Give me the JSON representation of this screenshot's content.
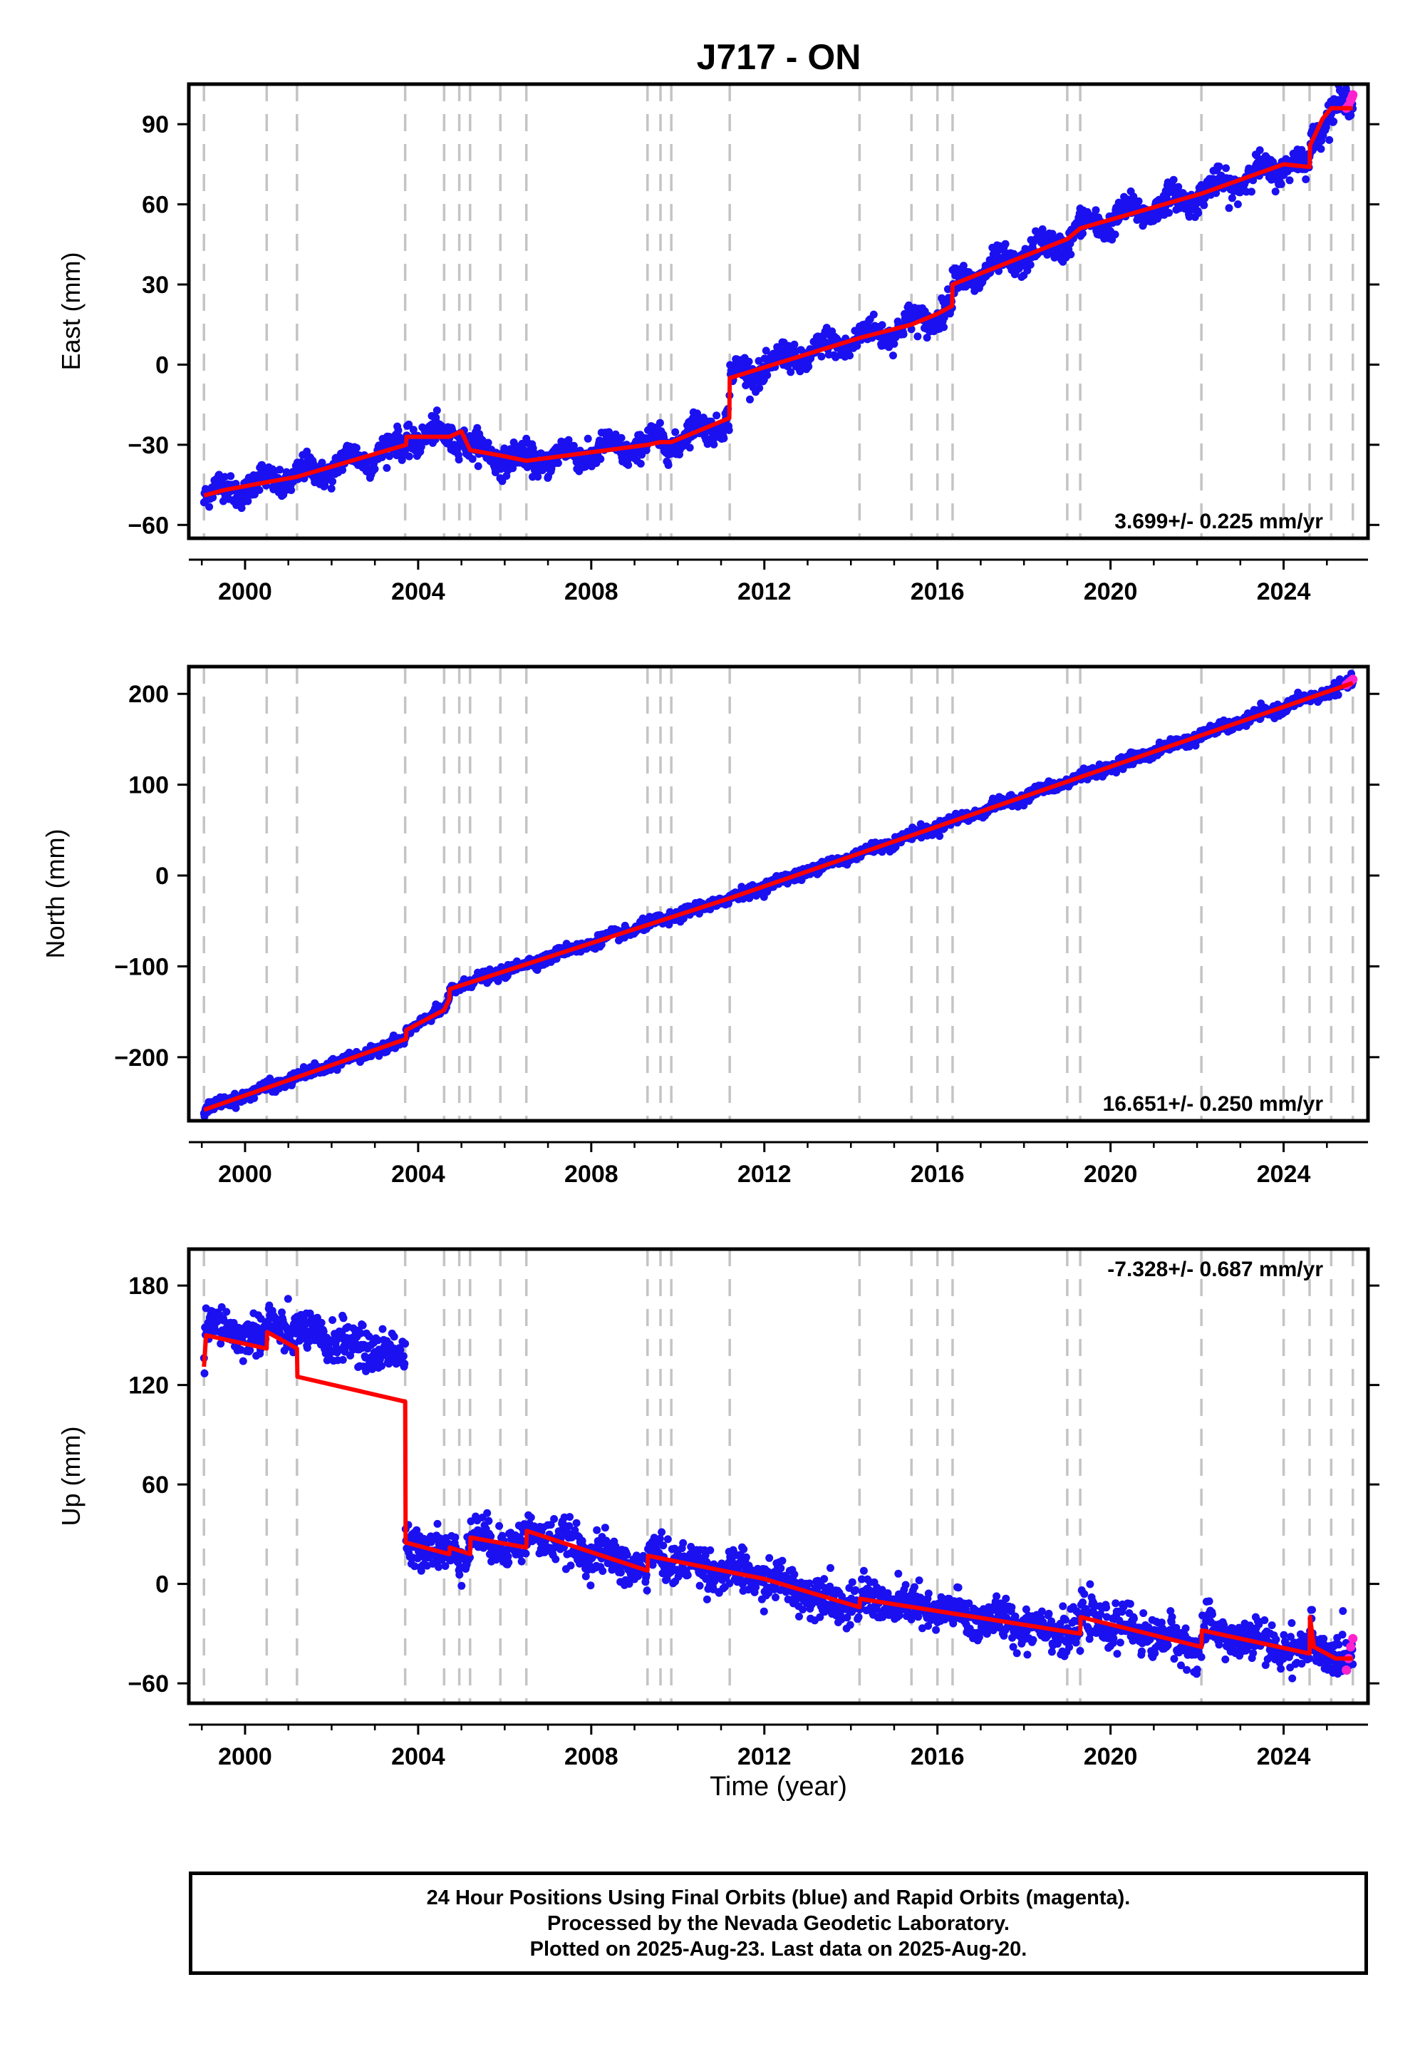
{
  "title": "J717 - ON",
  "chart_data": [
    {
      "type": "scatter",
      "ylabel": "East (mm)",
      "xlim": [
        1998.7,
        2025.95
      ],
      "ylim": [
        -65,
        105
      ],
      "x_ticks": [
        2000,
        2004,
        2008,
        2012,
        2016,
        2020,
        2024
      ],
      "x_tick_labels": [
        "2000",
        "2004",
        "2008",
        "2012",
        "2016",
        "2020",
        "2024"
      ],
      "y_ticks": [
        -60,
        -30,
        0,
        30,
        60,
        90
      ],
      "y_tick_labels": [
        "−60",
        "−30",
        "0",
        "30",
        "60",
        "90"
      ],
      "rate_label": "3.699+/- 0.225 mm/yr",
      "rate_position": "bottom-right",
      "seasonal_amplitude": 3,
      "scatter_sigma": 2.5,
      "model": {
        "x": [
          1999.05,
          1999.5,
          2000.5,
          2001.2,
          2003.72,
          2003.73,
          2004.72,
          2005.0,
          2005.2,
          2005.9,
          2006.5,
          2009.3,
          2009.6,
          2009.85,
          2011.19,
          2011.2,
          2014.2,
          2015.4,
          2016.0,
          2016.34,
          2016.35,
          2019.0,
          2019.3,
          2022.1,
          2024.0,
          2024.6,
          2024.61,
          2024.9,
          2025.1,
          2025.6
        ],
        "y": [
          -49,
          -47,
          -44,
          -42,
          -30,
          -27,
          -27,
          -25,
          -32,
          -34,
          -36,
          -30,
          -29,
          -29,
          -20,
          -5,
          10,
          15,
          19,
          22,
          30,
          47,
          51,
          64,
          75,
          74,
          82,
          92,
          96,
          96
        ]
      },
      "rapid_orbits": {
        "x": [
          2025.45,
          2025.5,
          2025.55,
          2025.58,
          2025.6
        ],
        "y": [
          96,
          97,
          99,
          100,
          101
        ]
      }
    },
    {
      "type": "scatter",
      "ylabel": "North (mm)",
      "xlim": [
        1998.7,
        2025.95
      ],
      "ylim": [
        -270,
        230
      ],
      "x_ticks": [
        2000,
        2004,
        2008,
        2012,
        2016,
        2020,
        2024
      ],
      "x_tick_labels": [
        "2000",
        "2004",
        "2008",
        "2012",
        "2016",
        "2020",
        "2024"
      ],
      "y_ticks": [
        -200,
        -100,
        0,
        100,
        200
      ],
      "y_tick_labels": [
        "−200",
        "−100",
        "0",
        "100",
        "200"
      ],
      "rate_label": "16.651+/- 0.250 mm/yr",
      "rate_position": "bottom-right",
      "seasonal_amplitude": 2,
      "scatter_sigma": 3,
      "model": {
        "x": [
          1999.05,
          2003.72,
          2003.73,
          2004.6,
          2004.72,
          2004.73,
          2011.2,
          2025.6
        ],
        "y": [
          -258,
          -180,
          -170,
          -148,
          -136,
          -125,
          -25,
          212
        ]
      },
      "rapid_orbits": {
        "x": [
          2025.45,
          2025.5,
          2025.55,
          2025.6
        ],
        "y": [
          210,
          212,
          214,
          216
        ]
      }
    },
    {
      "type": "scatter",
      "ylabel": "Up (mm)",
      "xlabel": "Time (year)",
      "xlim": [
        1998.7,
        2025.95
      ],
      "ylim": [
        -72,
        202
      ],
      "x_ticks": [
        2000,
        2004,
        2008,
        2012,
        2016,
        2020,
        2024
      ],
      "x_tick_labels": [
        "2000",
        "2004",
        "2008",
        "2012",
        "2016",
        "2020",
        "2024"
      ],
      "y_ticks": [
        -60,
        0,
        60,
        120,
        180
      ],
      "y_tick_labels": [
        "−60",
        "0",
        "60",
        "120",
        "180"
      ],
      "rate_label": "-7.328+/- 0.687 mm/yr",
      "rate_position": "top-right",
      "seasonal_amplitude": 3,
      "scatter_sigma": 6,
      "model": {
        "x": [
          1999.05,
          1999.1,
          2000.5,
          2000.51,
          2001.2,
          2001.21,
          2003.7,
          2003.71,
          2004.72,
          2004.73,
          2005.2,
          2005.21,
          2006.5,
          2006.51,
          2009.3,
          2009.31,
          2012.0,
          2014.2,
          2014.21,
          2019.3,
          2019.31,
          2022.1,
          2022.11,
          2024.6,
          2024.61,
          2024.7,
          2025.2,
          2025.6
        ],
        "y": [
          131,
          150,
          142,
          152,
          142,
          125,
          110,
          25,
          18,
          22,
          18,
          28,
          22,
          32,
          8,
          17,
          3,
          -14,
          -9,
          -30,
          -20,
          -38,
          -28,
          -42,
          -20,
          -38,
          -45,
          -45
        ]
      },
      "scatter_offsets": [
        {
          "from": 1999.05,
          "to": 2000.5,
          "offset": 6
        },
        {
          "from": 2000.5,
          "to": 2001.2,
          "offset": 8
        },
        {
          "from": 2001.2,
          "to": 2003.7,
          "offset": 27
        }
      ],
      "rapid_orbits": {
        "x": [
          2025.45,
          2025.5,
          2025.55,
          2025.6
        ],
        "y": [
          -52,
          -45,
          -38,
          -33
        ]
      }
    }
  ],
  "event_lines": [
    1999.05,
    2000.5,
    2001.2,
    2003.7,
    2004.6,
    2004.95,
    2005.2,
    2005.9,
    2006.5,
    2009.3,
    2009.6,
    2009.85,
    2011.2,
    2014.2,
    2015.4,
    2016.0,
    2016.35,
    2019.0,
    2019.3,
    2022.1,
    2024.0,
    2024.6,
    2025.1,
    2025.6
  ],
  "data_range": [
    1999.05,
    2025.6
  ],
  "colors": {
    "final_orbits": "#1a10f0",
    "rapid_orbits": "#ff22cc",
    "model": "#ff0000",
    "event_lines": "#c4c4c4",
    "frame": "#000000"
  },
  "footer": {
    "line1": "24 Hour Positions Using Final Orbits (blue) and Rapid Orbits (magenta).",
    "line2": "Processed by the Nevada Geodetic Laboratory.",
    "line3": "Plotted on 2025-Aug-23. Last data on 2025-Aug-20."
  }
}
